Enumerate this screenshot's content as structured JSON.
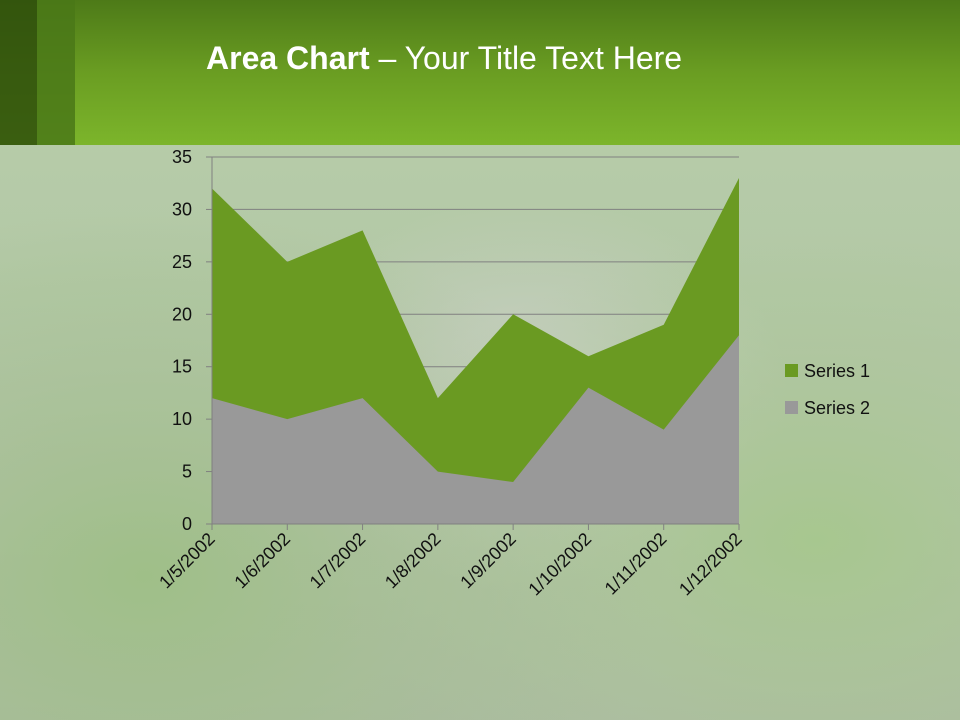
{
  "slide": {
    "title_bold": "Area Chart",
    "title_rest": " – Your Title Text Here"
  },
  "chart_data": {
    "type": "area",
    "categories": [
      "1/5/2002",
      "1/6/2002",
      "1/7/2002",
      "1/8/2002",
      "1/9/2002",
      "1/10/2002",
      "1/11/2002",
      "1/12/2002"
    ],
    "series": [
      {
        "name": "Series 1",
        "values": [
          32,
          25,
          28,
          12,
          20,
          16,
          19,
          33
        ],
        "color": "#6a9a22"
      },
      {
        "name": "Series 2",
        "values": [
          12,
          10,
          12,
          5,
          4,
          13,
          9,
          18
        ],
        "color": "#999999"
      }
    ],
    "ylim": [
      0,
      35
    ],
    "yticks": [
      0,
      5,
      10,
      15,
      20,
      25,
      30,
      35
    ],
    "grid": true,
    "legend": "right"
  }
}
